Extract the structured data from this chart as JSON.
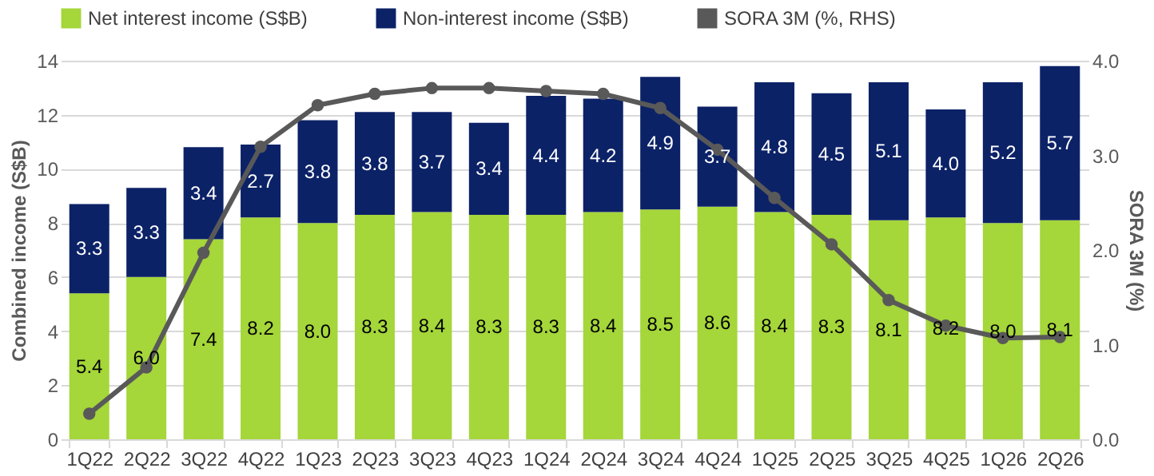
{
  "chart_data": {
    "type": "bar",
    "stacked": true,
    "grid": "y",
    "legend": "top",
    "ylabel": "Combined income (S$B)",
    "y2label": "SORA 3M (%)",
    "categories": [
      "1Q22",
      "2Q22",
      "3Q22",
      "4Q22",
      "1Q23",
      "2Q23",
      "3Q23",
      "4Q23",
      "1Q24",
      "2Q24",
      "3Q24",
      "4Q24",
      "1Q25",
      "2Q25",
      "3Q25",
      "4Q25",
      "1Q26",
      "2Q26"
    ],
    "ylim": [
      0,
      14
    ],
    "yticks": [
      0,
      2,
      4,
      6,
      8,
      10,
      12,
      14
    ],
    "y2lim": [
      0,
      4
    ],
    "y2ticks": [
      {
        "value": 0,
        "label": "0.0"
      },
      {
        "value": 1,
        "label": "1.0"
      },
      {
        "value": 2,
        "label": "2.0"
      },
      {
        "value": 3,
        "label": "3.0"
      },
      {
        "value": 4,
        "label": "4.0"
      }
    ],
    "series": [
      {
        "name": "Net interest income (S$B)",
        "color": "#a5d63a",
        "values": [
          5.4,
          6.0,
          7.4,
          8.2,
          8.0,
          8.3,
          8.4,
          8.3,
          8.3,
          8.4,
          8.5,
          8.6,
          8.4,
          8.3,
          8.1,
          8.2,
          8.0,
          8.1
        ],
        "value_labels": [
          "5.4",
          "6.0",
          "7.4",
          "8.2",
          "8.0",
          "8.3",
          "8.4",
          "8.3",
          "8.3",
          "8.4",
          "8.5",
          "8.6",
          "8.4",
          "8.3",
          "8.1",
          "8.2",
          "8.0",
          "8.1"
        ]
      },
      {
        "name": "Non-interest income (S$B)",
        "color": "#0c2267",
        "values": [
          3.3,
          3.3,
          3.4,
          2.7,
          3.8,
          3.8,
          3.7,
          3.4,
          4.4,
          4.2,
          4.9,
          3.7,
          4.8,
          4.5,
          5.1,
          4.0,
          5.2,
          5.7
        ],
        "value_labels": [
          "3.3",
          "3.3",
          "3.4",
          "2.7",
          "3.8",
          "3.8",
          "3.7",
          "3.4",
          "4.4",
          "4.2",
          "4.9",
          "3.7",
          "4.8",
          "4.5",
          "5.1",
          "4.0",
          "5.2",
          "5.7"
        ]
      },
      {
        "name": "SORA 3M (%, RHS)",
        "color": "#595959",
        "type": "line",
        "axis": "y2",
        "marker": "circle",
        "line_style": "solid",
        "values": [
          0.27,
          0.76,
          1.97,
          3.09,
          3.53,
          3.65,
          3.71,
          3.71,
          3.68,
          3.65,
          3.5,
          3.06,
          2.55,
          2.06,
          1.47,
          1.2,
          1.07,
          1.08
        ]
      }
    ]
  }
}
